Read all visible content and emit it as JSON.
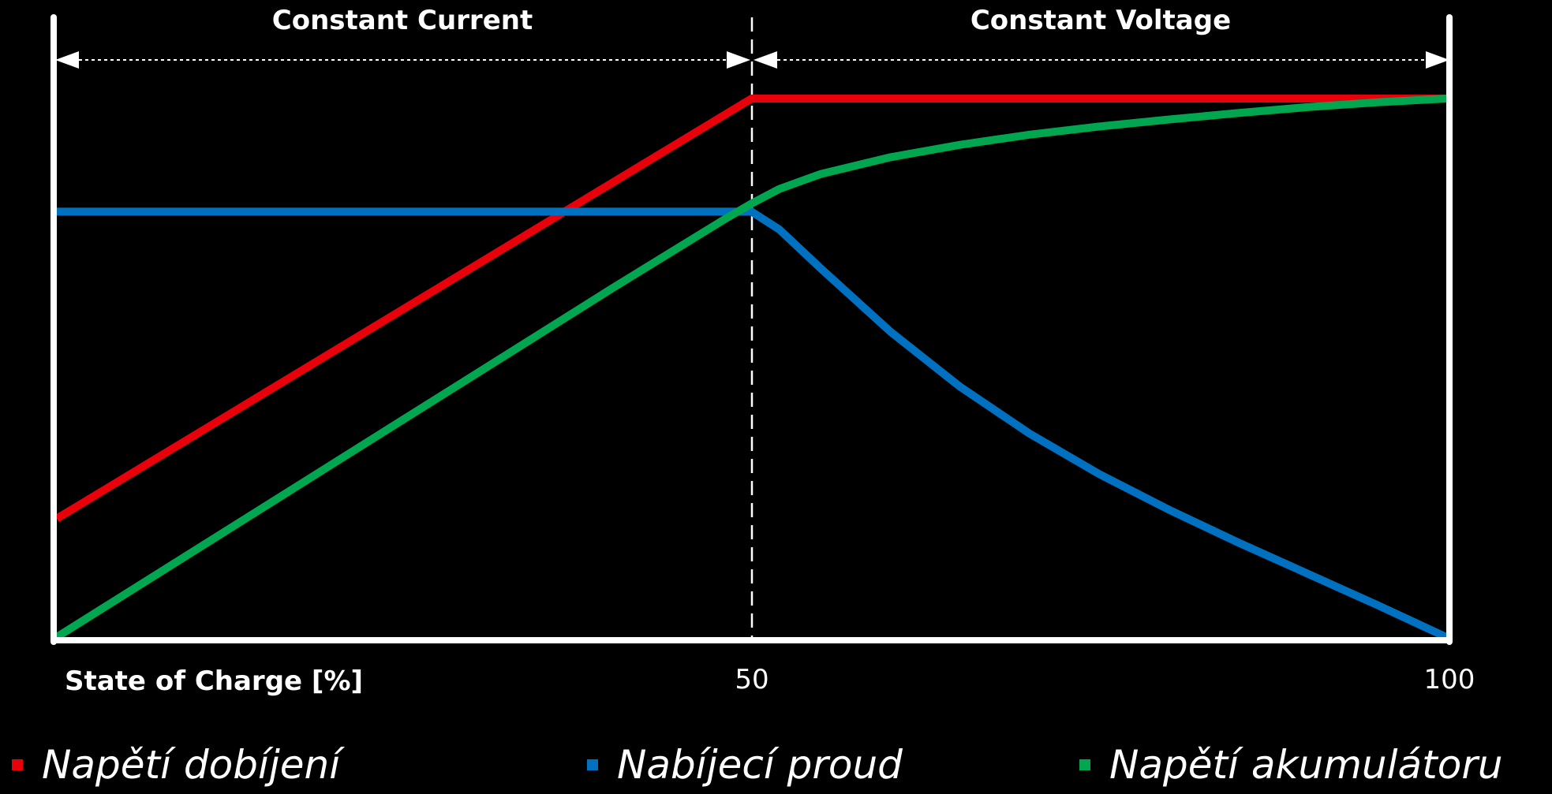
{
  "chart_data": {
    "type": "line",
    "phases": [
      {
        "label": "Constant Current",
        "x_range": [
          0,
          50
        ]
      },
      {
        "label": "Constant Voltage",
        "x_range": [
          50,
          100
        ]
      }
    ],
    "xlabel": "State of Charge [%]",
    "xticks": [
      "50",
      "100"
    ],
    "xlim": [
      0,
      100
    ],
    "ylim": [
      0,
      100
    ],
    "series": [
      {
        "name": "Napětí dobíjení",
        "color": "#e8000b",
        "x": [
          0,
          50,
          100
        ],
        "y": [
          22,
          100,
          100
        ]
      },
      {
        "name": "Nabíjecí proud",
        "color": "#0070c0",
        "x": [
          0,
          50,
          52,
          55,
          60,
          65,
          70,
          75,
          80,
          85,
          90,
          95,
          100
        ],
        "y": [
          79,
          79,
          75.7,
          68.4,
          56.7,
          46.5,
          37.8,
          30.3,
          23.7,
          17.6,
          11.8,
          6.0,
          0
        ]
      },
      {
        "name": "Napětí akumulátoru",
        "color": "#00a650",
        "x": [
          0,
          10,
          20,
          30,
          40,
          48,
          50,
          52,
          55,
          60,
          65,
          70,
          75,
          80,
          85,
          90,
          95,
          100
        ],
        "y": [
          0,
          16.2,
          32.4,
          48.6,
          64.8,
          77.5,
          80.5,
          83.2,
          86.0,
          89.1,
          91.4,
          93.3,
          94.8,
          96.1,
          97.3,
          98.4,
          99.3,
          100
        ]
      }
    ],
    "grid": false,
    "legend_position": "bottom"
  }
}
